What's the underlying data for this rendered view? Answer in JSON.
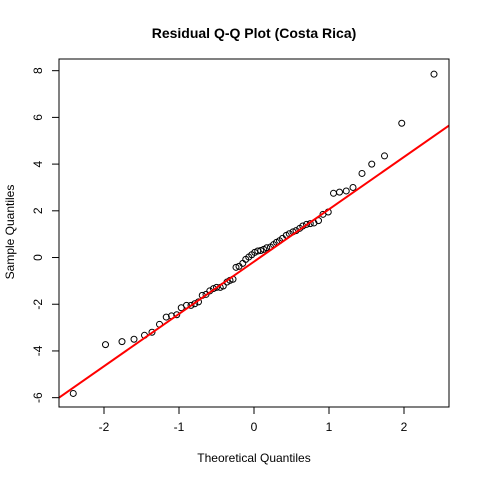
{
  "chart_data": {
    "type": "scatter",
    "title": "Residual Q-Q Plot (Costa Rica)",
    "xlabel": "Theoretical Quantiles",
    "ylabel": "Sample Quantiles",
    "xlim": [
      -2.6,
      2.6
    ],
    "ylim": [
      -6.4,
      8.5
    ],
    "xticks": [
      -2,
      -1,
      0,
      1,
      2
    ],
    "yticks": [
      -6,
      -4,
      -2,
      0,
      2,
      4,
      6,
      8
    ],
    "grid": false,
    "colors": {
      "points": "#000000",
      "reference_line": "#ff0000"
    },
    "reference_line": {
      "x1": -2.6,
      "y1": -6.0,
      "x2": 2.6,
      "y2": 5.65
    },
    "points": [
      {
        "x": -2.41,
        "y": -5.82
      },
      {
        "x": -1.98,
        "y": -3.73
      },
      {
        "x": -1.76,
        "y": -3.6
      },
      {
        "x": -1.6,
        "y": -3.5
      },
      {
        "x": -1.46,
        "y": -3.33
      },
      {
        "x": -1.36,
        "y": -3.2
      },
      {
        "x": -1.26,
        "y": -2.86
      },
      {
        "x": -1.17,
        "y": -2.55
      },
      {
        "x": -1.1,
        "y": -2.5
      },
      {
        "x": -1.03,
        "y": -2.45
      },
      {
        "x": -0.97,
        "y": -2.15
      },
      {
        "x": -0.9,
        "y": -2.05
      },
      {
        "x": -0.84,
        "y": -2.05
      },
      {
        "x": -0.79,
        "y": -1.98
      },
      {
        "x": -0.74,
        "y": -1.9
      },
      {
        "x": -0.69,
        "y": -1.62
      },
      {
        "x": -0.64,
        "y": -1.58
      },
      {
        "x": -0.59,
        "y": -1.43
      },
      {
        "x": -0.54,
        "y": -1.33
      },
      {
        "x": -0.5,
        "y": -1.28
      },
      {
        "x": -0.45,
        "y": -1.28
      },
      {
        "x": -0.41,
        "y": -1.22
      },
      {
        "x": -0.36,
        "y": -1.05
      },
      {
        "x": -0.32,
        "y": -0.98
      },
      {
        "x": -0.28,
        "y": -0.93
      },
      {
        "x": -0.24,
        "y": -0.42
      },
      {
        "x": -0.2,
        "y": -0.38
      },
      {
        "x": -0.15,
        "y": -0.25
      },
      {
        "x": -0.11,
        "y": -0.08
      },
      {
        "x": -0.07,
        "y": 0.02
      },
      {
        "x": -0.03,
        "y": 0.12
      },
      {
        "x": 0.01,
        "y": 0.22
      },
      {
        "x": 0.05,
        "y": 0.28
      },
      {
        "x": 0.09,
        "y": 0.3
      },
      {
        "x": 0.13,
        "y": 0.35
      },
      {
        "x": 0.17,
        "y": 0.42
      },
      {
        "x": 0.22,
        "y": 0.45
      },
      {
        "x": 0.26,
        "y": 0.55
      },
      {
        "x": 0.3,
        "y": 0.65
      },
      {
        "x": 0.34,
        "y": 0.72
      },
      {
        "x": 0.38,
        "y": 0.82
      },
      {
        "x": 0.43,
        "y": 0.95
      },
      {
        "x": 0.47,
        "y": 1.02
      },
      {
        "x": 0.52,
        "y": 1.1
      },
      {
        "x": 0.56,
        "y": 1.15
      },
      {
        "x": 0.61,
        "y": 1.25
      },
      {
        "x": 0.65,
        "y": 1.35
      },
      {
        "x": 0.7,
        "y": 1.42
      },
      {
        "x": 0.75,
        "y": 1.45
      },
      {
        "x": 0.8,
        "y": 1.48
      },
      {
        "x": 0.86,
        "y": 1.58
      },
      {
        "x": 0.92,
        "y": 1.85
      },
      {
        "x": 0.99,
        "y": 1.95
      },
      {
        "x": 1.06,
        "y": 2.75
      },
      {
        "x": 1.14,
        "y": 2.8
      },
      {
        "x": 1.23,
        "y": 2.85
      },
      {
        "x": 1.32,
        "y": 3.0
      },
      {
        "x": 1.44,
        "y": 3.6
      },
      {
        "x": 1.57,
        "y": 4.0
      },
      {
        "x": 1.74,
        "y": 4.35
      },
      {
        "x": 1.97,
        "y": 5.75
      },
      {
        "x": 2.4,
        "y": 7.85
      }
    ]
  }
}
